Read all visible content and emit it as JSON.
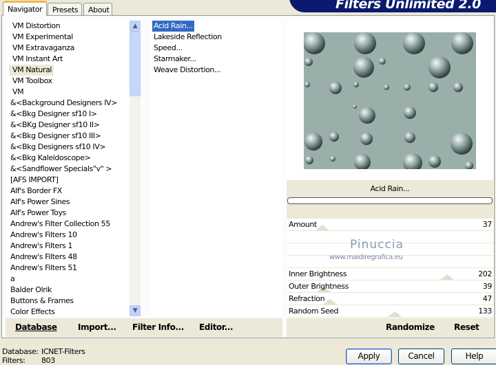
{
  "tabs": [
    {
      "label": "Navigator"
    },
    {
      "label": "Presets"
    },
    {
      "label": "About"
    }
  ],
  "logo": "Filters Unlimited 2.0",
  "categories": [
    "VM Distortion",
    "VM Experimental",
    "VM Extravaganza",
    "VM Instant Art",
    "VM Natural",
    "VM Toolbox",
    "VM",
    "&<Background Designers IV>",
    "&<Bkg Designer sf10 I>",
    "&<BKg Designer sf10 II>",
    "&<Bkg Designer sf10 III>",
    "&<Bkg Designers sf10 IV>",
    "&<Bkg Kaleidoscope>",
    "&<Sandflower Specials\"v\" >",
    "[AFS IMPORT]",
    "Alf's Border FX",
    "Alf's Power Sines",
    "Alf's Power Toys",
    "Andrew's Filter Collection 55",
    "Andrew's Filters 10",
    "Andrew's Filters 1",
    "Andrew's Filters 48",
    "Andrew's Filters 51",
    "a",
    "Balder Olrik",
    "Buttons & Frames",
    "Color Effects"
  ],
  "selected_category": "VM Natural",
  "filters": [
    "Acid Rain...",
    "Lakeside Reflection",
    "Speed...",
    "Starmaker...",
    "Weave Distortion..."
  ],
  "selected_filter": "Acid Rain...",
  "preview_title": "Acid Rain...",
  "sliders": [
    {
      "label": "Amount",
      "value": 37
    },
    {
      "label": "Inner Brightness",
      "value": 202
    },
    {
      "label": "Outer Brightness",
      "value": 39
    },
    {
      "label": "Refraction",
      "value": 47
    },
    {
      "label": "Random Seed",
      "value": 133
    }
  ],
  "slider_max": 255,
  "watermark": {
    "name": "Pinuccia",
    "url": "www.maidiregrafica.eu"
  },
  "left_buttons": {
    "database": "Database",
    "import": "Import...",
    "filter_info": "Filter Info...",
    "editor": "Editor..."
  },
  "right_buttons": {
    "randomize": "Randomize",
    "reset": "Reset"
  },
  "status": {
    "database_label": "Database:",
    "database_value": "ICNET-Filters",
    "filters_label": "Filters:",
    "filters_value": "803"
  },
  "dialog_buttons": {
    "apply": "Apply",
    "cancel": "Cancel",
    "help": "Help"
  },
  "colors": {
    "selection": "#316ac5",
    "preview_bg": "#9aaeaa"
  }
}
